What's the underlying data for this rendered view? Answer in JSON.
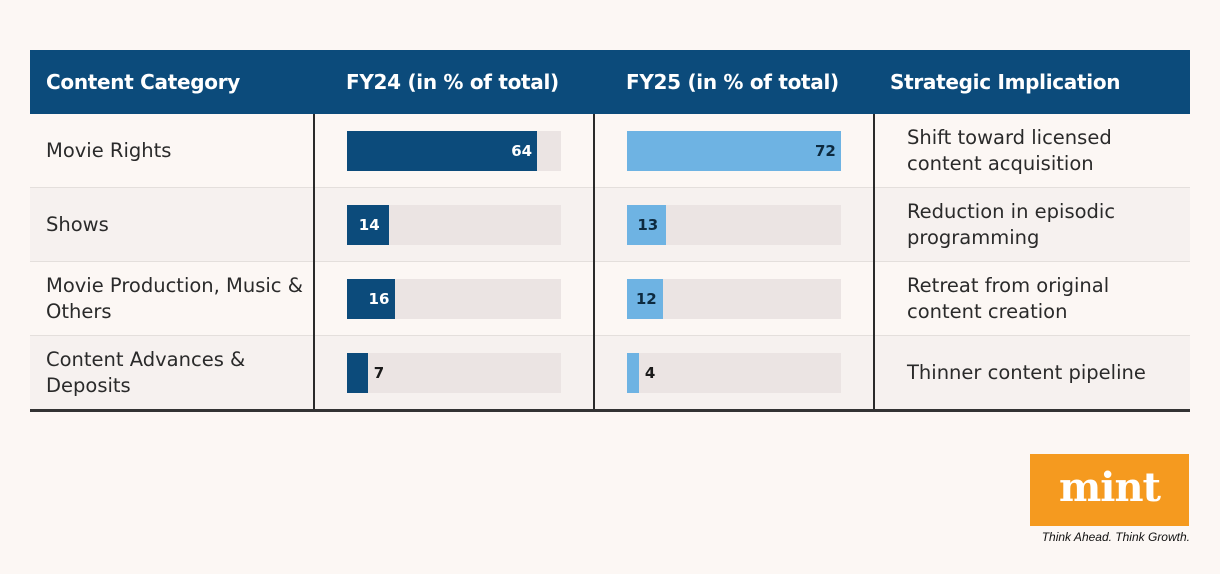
{
  "header": {
    "col1": "Content Category",
    "col2": "FY24 (in % of total)",
    "col3": "FY25 (in % of total)",
    "col4": "Strategic Implication"
  },
  "chart_data": {
    "type": "table",
    "max": 72,
    "colors": {
      "fy24": "#0c4b7b",
      "fy25": "#6eb3e3",
      "header_bg": "#0c4b7b",
      "track": "#ebe4e3"
    },
    "series": [
      {
        "name": "FY24 (in % of total)",
        "values": [
          64,
          14,
          16,
          7
        ]
      },
      {
        "name": "FY25 (in % of total)",
        "values": [
          72,
          13,
          12,
          4
        ]
      }
    ],
    "rows": [
      {
        "category": "Movie Rights",
        "fy24": 64,
        "fy25": 72,
        "implication": "Shift toward licensed content acquisition"
      },
      {
        "category": "Shows",
        "fy24": 14,
        "fy25": 13,
        "implication": "Reduction in episodic programming"
      },
      {
        "category": "Movie Production, Music & Others",
        "fy24": 16,
        "fy25": 12,
        "implication": "Retreat from original content creation"
      },
      {
        "category": "Content Advances & Deposits",
        "fy24": 7,
        "fy25": 4,
        "implication": "Thinner content pipeline"
      }
    ]
  },
  "branding": {
    "logo": "mint",
    "tagline": "Think Ahead. Think Growth.",
    "logo_color": "#f59a1f"
  }
}
